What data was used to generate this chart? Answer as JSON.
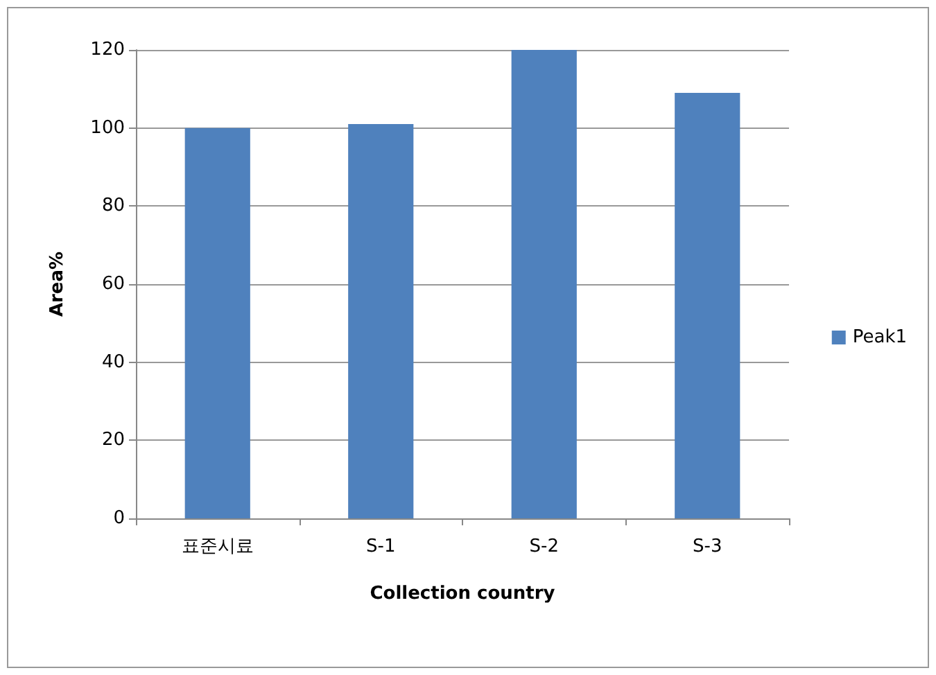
{
  "chart_data": {
    "type": "bar",
    "xlabel": "Collection country",
    "ylabel": "Area%",
    "categories": [
      "표준시료",
      "S-1",
      "S-2",
      "S-3"
    ],
    "series": [
      {
        "name": "Peak1",
        "color": "#4f81bd",
        "values": [
          100,
          101,
          120,
          109
        ]
      }
    ],
    "ylim": [
      0,
      120
    ],
    "yticks": [
      0,
      20,
      40,
      60,
      80,
      100,
      120
    ],
    "grid": "y",
    "legend": "right"
  }
}
